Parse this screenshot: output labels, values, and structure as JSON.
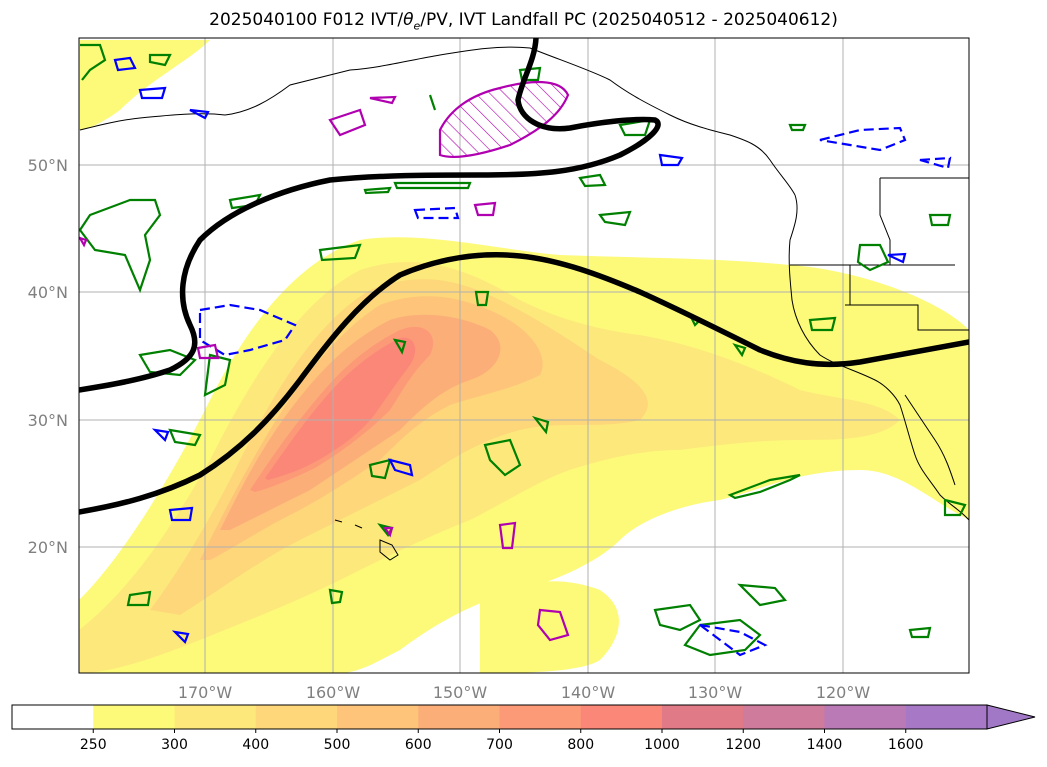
{
  "title_prefix": "2025040100 F012 IVT/",
  "title_theta": "θ",
  "title_theta_sub": "e",
  "title_suffix": "/PV, IVT Landfall PC (2025040512 - 2025040612)",
  "map": {
    "lat_labels": [
      "50°N",
      "40°N",
      "30°N",
      "20°N"
    ],
    "lon_labels": [
      "170°W",
      "160°W",
      "150°W",
      "140°W",
      "130°W",
      "120°W"
    ]
  },
  "colorbar": {
    "levels": [
      "250",
      "300",
      "400",
      "500",
      "600",
      "700",
      "800",
      "1000",
      "1200",
      "1400",
      "1600"
    ],
    "colors": [
      "#ffffff",
      "#fdfa7a",
      "#fde97b",
      "#fdd77a",
      "#fdc47a",
      "#fcae78",
      "#fc9a78",
      "#fb8778",
      "#e07a86",
      "#cf7b9b",
      "#b97ab6",
      "#a678c6"
    ]
  },
  "colors": {
    "theta_e": "#008000",
    "pv_positive": "#0000ff",
    "pv_hatch": "#b000b0",
    "jet": "#000000",
    "coast": "#000000",
    "grid": "#b0b0b0"
  }
}
